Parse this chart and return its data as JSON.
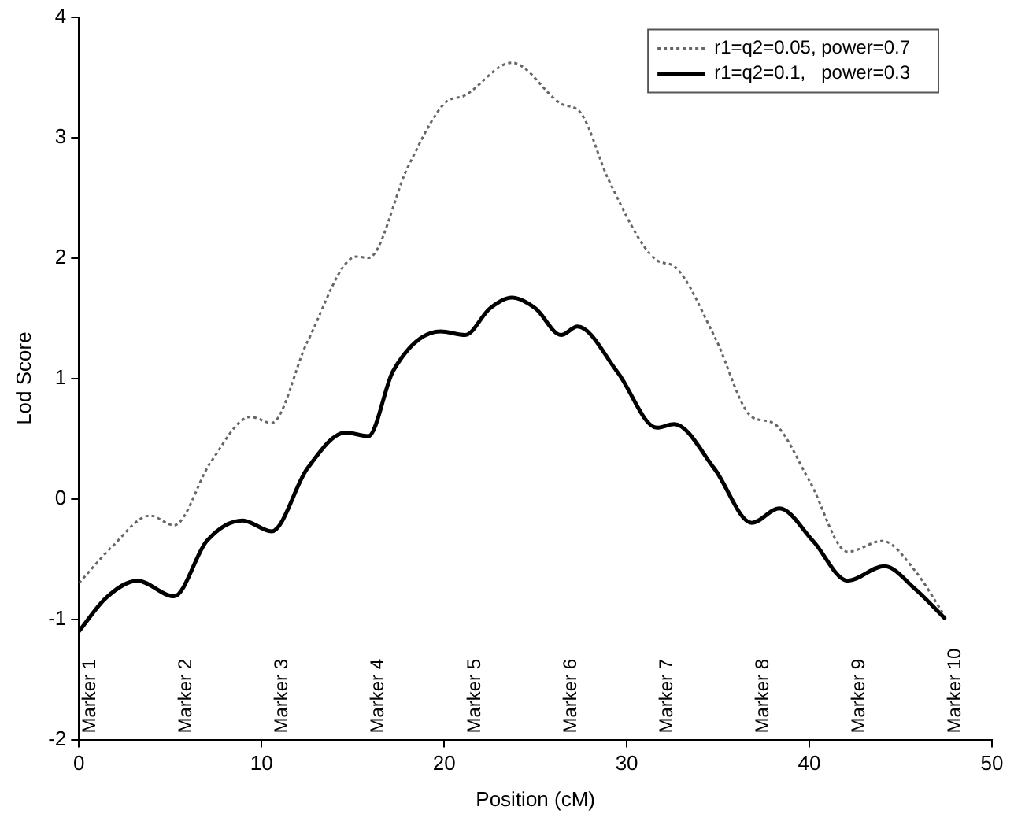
{
  "chart_data": {
    "type": "line",
    "xlabel": "Position (cM)",
    "ylabel": "Lod Score",
    "xlim": [
      0,
      50
    ],
    "xticks": [
      0,
      10,
      20,
      30,
      40,
      50
    ],
    "ylim": [
      -2,
      4
    ],
    "yticks": [
      -2,
      -1,
      0,
      1,
      2,
      3,
      4
    ],
    "grid": false,
    "legend": "top right",
    "marker": "none",
    "series": [
      {
        "name": "r1=q2=0.05, power=0.7",
        "color": "#666666",
        "line_style": "dotted",
        "x": [
          0,
          1.8,
          3.9,
          5.2,
          7.2,
          9.4,
          10.55,
          12.5,
          15.2,
          15.85,
          18,
          20,
          21.15,
          23.7,
          26.4,
          27.5,
          29,
          31.65,
          32.6,
          34.8,
          36.85,
          38,
          40,
          42.1,
          44,
          45.8,
          47.4
        ],
        "values": [
          -0.7,
          -0.4,
          -0.14,
          -0.22,
          0.3,
          0.68,
          0.63,
          1.3,
          2.01,
          2.0,
          2.75,
          3.28,
          3.35,
          3.62,
          3.28,
          3.2,
          2.65,
          1.98,
          1.93,
          1.35,
          0.68,
          0.63,
          0.15,
          -0.44,
          -0.35,
          -0.6,
          -0.97
        ]
      },
      {
        "name": "r1=q2=0.1,   power=0.3",
        "color": "#000000",
        "line_style": "solid",
        "x": [
          0,
          1.5,
          3.2,
          5.2,
          7,
          8.97,
          10.55,
          12.5,
          14.6,
          15.85,
          17.2,
          19.8,
          21.15,
          22.5,
          23.7,
          25,
          26.4,
          27.3,
          29.5,
          31.65,
          32.6,
          34.8,
          36.85,
          38.35,
          40.2,
          42.1,
          44.1,
          45.8,
          47.4
        ],
        "values": [
          -1.1,
          -0.82,
          -0.68,
          -0.81,
          -0.35,
          -0.18,
          -0.27,
          0.25,
          0.55,
          0.52,
          1.06,
          1.39,
          1.36,
          1.58,
          1.67,
          1.58,
          1.36,
          1.43,
          1.05,
          0.59,
          0.62,
          0.25,
          -0.2,
          -0.08,
          -0.35,
          -0.68,
          -0.56,
          -0.75,
          -0.99
        ]
      }
    ],
    "annotations": [
      "Marker 1",
      "Marker 2",
      "Marker 3",
      "Marker 4",
      "Marker 5",
      "Marker 6",
      "Marker 7",
      "Marker 8",
      "Marker 9",
      "Marker 10"
    ]
  }
}
